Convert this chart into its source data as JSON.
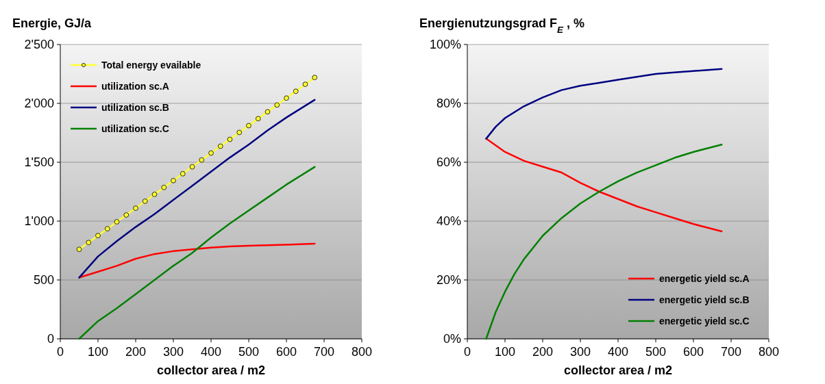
{
  "chart_data": [
    {
      "type": "line",
      "ylabel": "Energie, GJ/a",
      "xlabel": "collector area / m2",
      "xlim": [
        0,
        800
      ],
      "xticks": [
        0,
        100,
        200,
        300,
        400,
        500,
        600,
        700,
        800
      ],
      "ylim": [
        0,
        2500
      ],
      "yticks": [
        0,
        500,
        {
          "value": 1000,
          "label": "1'000"
        },
        {
          "value": 1500,
          "label": "1'500"
        },
        {
          "value": 2000,
          "label": "2'000"
        },
        {
          "value": 2500,
          "label": "2'500"
        }
      ],
      "grid": "y",
      "legend": "top left",
      "series": [
        {
          "name": "Total energy evailable",
          "color": "#ffff33",
          "marker": "circle",
          "x": [
            50,
            75,
            100,
            125,
            150,
            175,
            200,
            225,
            250,
            275,
            300,
            325,
            350,
            375,
            400,
            425,
            450,
            475,
            500,
            525,
            550,
            575,
            600,
            625,
            650,
            675
          ],
          "values": [
            760,
            818,
            877,
            935,
            994,
            1052,
            1110,
            1169,
            1227,
            1286,
            1344,
            1402,
            1461,
            1519,
            1578,
            1636,
            1694,
            1753,
            1811,
            1870,
            1928,
            1986,
            2045,
            2103,
            2162,
            2220
          ]
        },
        {
          "name": "utilization sc.A",
          "color": "#ff0000",
          "marker": "none",
          "x": [
            50,
            100,
            150,
            200,
            250,
            300,
            350,
            400,
            450,
            500,
            550,
            600,
            675
          ],
          "values": [
            520,
            570,
            620,
            680,
            720,
            745,
            760,
            775,
            785,
            790,
            795,
            800,
            808
          ]
        },
        {
          "name": "utilization sc.B",
          "color": "#000080",
          "marker": "none",
          "x": [
            50,
            100,
            150,
            200,
            250,
            300,
            350,
            400,
            450,
            500,
            550,
            600,
            675
          ],
          "values": [
            520,
            700,
            830,
            950,
            1060,
            1180,
            1300,
            1420,
            1540,
            1650,
            1770,
            1880,
            2030
          ]
        },
        {
          "name": "utilization sc.C",
          "color": "#008000",
          "marker": "none",
          "x": [
            50,
            100,
            150,
            200,
            250,
            300,
            350,
            400,
            450,
            500,
            550,
            600,
            675
          ],
          "values": [
            0,
            150,
            260,
            380,
            500,
            620,
            730,
            860,
            980,
            1090,
            1200,
            1310,
            1460
          ]
        }
      ]
    },
    {
      "type": "line",
      "ylabel": "Energienutzungsgrad F$_{E}$ , %",
      "xlabel": "collector area / m2",
      "xlim": [
        0,
        800
      ],
      "xticks": [
        0,
        100,
        200,
        300,
        400,
        500,
        600,
        700,
        800
      ],
      "ylim": [
        0,
        100
      ],
      "yticks": [
        {
          "value": 0,
          "label": "0%"
        },
        {
          "value": 20,
          "label": "20%"
        },
        {
          "value": 40,
          "label": "40%"
        },
        {
          "value": 60,
          "label": "60%"
        },
        {
          "value": 80,
          "label": "80%"
        },
        {
          "value": 100,
          "label": "100%"
        }
      ],
      "grid": "y",
      "legend": "bottom right",
      "series": [
        {
          "name": "energetic yield sc.A",
          "color": "#ff0000",
          "marker": "none",
          "x": [
            50,
            100,
            150,
            200,
            250,
            300,
            350,
            400,
            450,
            500,
            550,
            600,
            675
          ],
          "values": [
            68,
            63.5,
            60.5,
            58.5,
            56.5,
            53,
            50,
            47.5,
            45,
            43,
            41,
            39,
            36.5
          ]
        },
        {
          "name": "energetic yield sc.B",
          "color": "#000080",
          "marker": "none",
          "x": [
            50,
            75,
            100,
            150,
            200,
            250,
            300,
            350,
            400,
            450,
            500,
            550,
            600,
            675
          ],
          "values": [
            68,
            72,
            75,
            79,
            82,
            84.5,
            86,
            87,
            88,
            89,
            90,
            90.5,
            91,
            91.7
          ]
        },
        {
          "name": "energetic yield sc.C",
          "color": "#008000",
          "marker": "none",
          "x": [
            50,
            75,
            100,
            125,
            150,
            200,
            250,
            300,
            350,
            400,
            450,
            500,
            550,
            600,
            675
          ],
          "values": [
            0,
            9,
            16,
            22,
            27,
            35,
            41,
            46,
            50,
            53.5,
            56.5,
            59,
            61.5,
            63.5,
            66
          ]
        }
      ]
    }
  ]
}
